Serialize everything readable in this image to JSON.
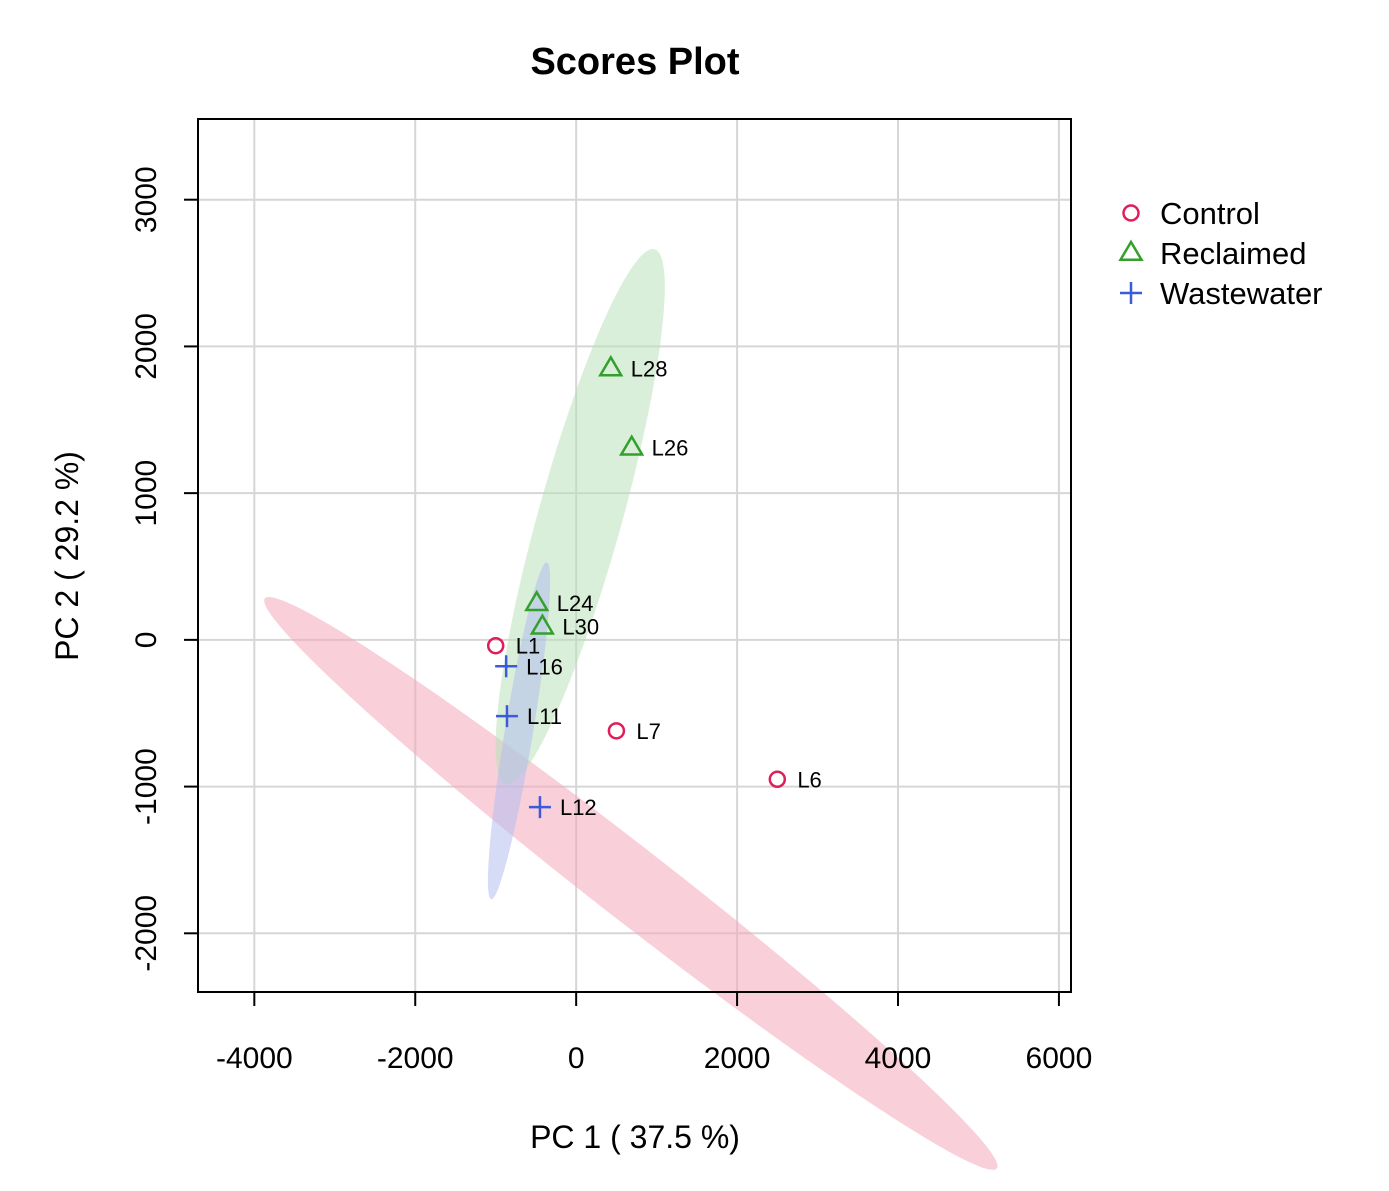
{
  "chart_data": {
    "type": "scatter",
    "title": "Scores Plot",
    "xlabel": "PC 1 ( 37.5 %)",
    "ylabel": "PC 2 ( 29.2 %)",
    "xlim": [
      -4700,
      6150
    ],
    "ylim": [
      -2400,
      3550
    ],
    "xticks": [
      -4000,
      -2000,
      0,
      2000,
      4000,
      6000
    ],
    "yticks": [
      -2000,
      -1000,
      0,
      1000,
      2000,
      3000
    ],
    "xtick_labels": [
      "-4000",
      "-2000",
      "0",
      "2000",
      "4000",
      "6000"
    ],
    "ytick_labels": [
      "-2000",
      "-1000",
      "0",
      "1000",
      "2000",
      "3000"
    ],
    "grid": true,
    "legend_position": "top-right",
    "series": [
      {
        "name": "Control",
        "marker": "circle",
        "color": "#DF1E5A",
        "fill": "#F4A7BB",
        "points": [
          {
            "label": "L1",
            "x": -1000,
            "y": -40
          },
          {
            "label": "L7",
            "x": 500,
            "y": -620
          },
          {
            "label": "L6",
            "x": 2500,
            "y": -950
          }
        ],
        "ellipse": {
          "center": [
            680,
            -1660
          ],
          "semi_major": 4950,
          "semi_minor": 290,
          "angle_deg": -23
        }
      },
      {
        "name": "Reclaimed",
        "marker": "triangle",
        "color": "#33A02C",
        "fill": "#B9E2BA",
        "points": [
          {
            "label": "L28",
            "x": 430,
            "y": 1850
          },
          {
            "label": "L26",
            "x": 690,
            "y": 1310
          },
          {
            "label": "L24",
            "x": -490,
            "y": 250
          },
          {
            "label": "L30",
            "x": -420,
            "y": 90
          }
        ],
        "ellipse": {
          "center": [
            50,
            840
          ],
          "semi_major": 2050,
          "semi_minor": 480,
          "angle_deg": 62
        }
      },
      {
        "name": "Wastewater",
        "marker": "plus",
        "color": "#3B5BDB",
        "fill": "#B4BDEE",
        "points": [
          {
            "label": "L16",
            "x": -870,
            "y": -180
          },
          {
            "label": "L11",
            "x": -860,
            "y": -520
          },
          {
            "label": "L12",
            "x": -450,
            "y": -1140
          }
        ],
        "ellipse": {
          "center": [
            -710,
            -620
          ],
          "semi_major": 1200,
          "semi_minor": 170,
          "angle_deg": 73
        }
      }
    ]
  }
}
